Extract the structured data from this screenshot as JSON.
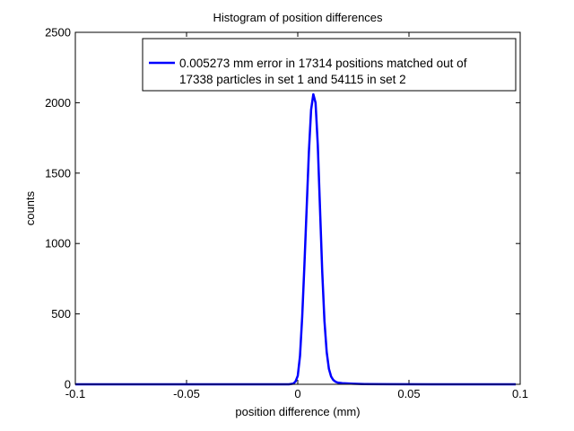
{
  "chart_data": {
    "type": "line",
    "title": "Histogram of position differences",
    "xlabel": "position difference (mm)",
    "ylabel": "counts",
    "xlim": [
      -0.1,
      0.1
    ],
    "ylim": [
      0,
      2500
    ],
    "xticks": [
      -0.1,
      -0.05,
      0,
      0.05,
      0.1
    ],
    "xtick_labels": [
      "-0.1",
      "-0.05",
      "0",
      "0.05",
      "0.1"
    ],
    "yticks": [
      0,
      500,
      1000,
      1500,
      2000,
      2500
    ],
    "ytick_labels": [
      "0",
      "500",
      "1000",
      "1500",
      "2000",
      "2500"
    ],
    "grid": false,
    "legend_position": "top-right",
    "series": [
      {
        "name": "0.005273 mm error in 17314 positions matched out of 17338 particles in set 1 and 54115 in set 2",
        "legend_lines": [
          "0.005273 mm error in 17314 positions matched out of",
          "17338 particles in set 1 and 54115 in set 2"
        ],
        "color": "#0000ff",
        "x": [
          -0.1,
          -0.08,
          -0.06,
          -0.04,
          -0.02,
          -0.004,
          -0.002,
          -0.001,
          0.0,
          0.001,
          0.002,
          0.003,
          0.004,
          0.005,
          0.006,
          0.007,
          0.008,
          0.009,
          0.01,
          0.011,
          0.012,
          0.013,
          0.014,
          0.015,
          0.016,
          0.017,
          0.018,
          0.02,
          0.022,
          0.025,
          0.03,
          0.04,
          0.06,
          0.08,
          0.098
        ],
        "values": [
          0,
          0,
          0,
          0,
          0,
          0,
          5,
          20,
          60,
          200,
          480,
          850,
          1250,
          1650,
          1950,
          2060,
          2000,
          1700,
          1250,
          800,
          450,
          230,
          110,
          55,
          30,
          18,
          12,
          8,
          6,
          4,
          2,
          1,
          0,
          0,
          0
        ]
      }
    ]
  }
}
